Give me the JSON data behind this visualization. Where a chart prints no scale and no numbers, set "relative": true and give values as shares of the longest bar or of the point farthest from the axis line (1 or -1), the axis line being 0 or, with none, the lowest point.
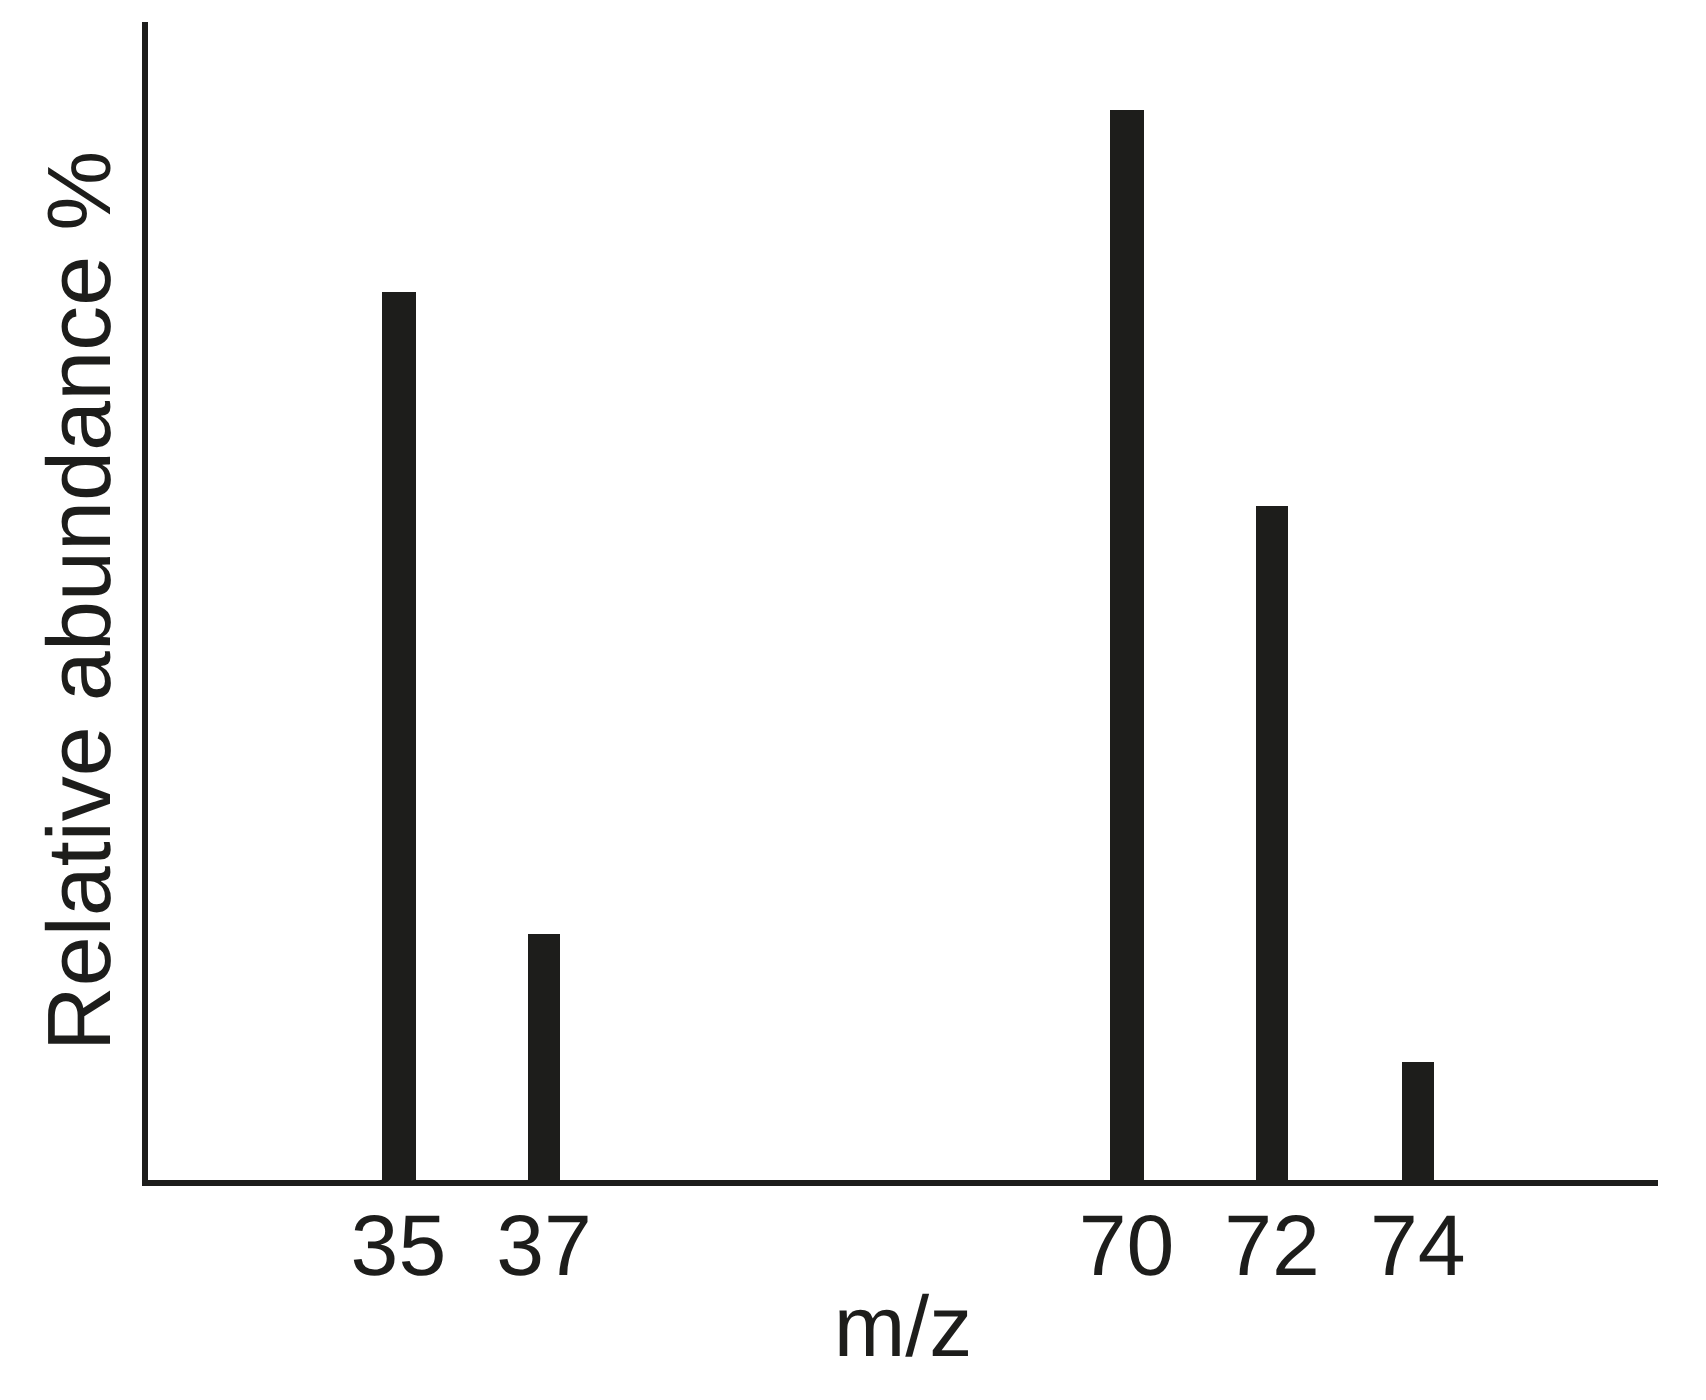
{
  "chart_data": {
    "type": "bar",
    "relative": true,
    "xlabel": "m/z",
    "ylabel": "Relative abundance %",
    "categories": [
      "35",
      "37",
      null,
      null,
      null,
      "70",
      "72",
      "74"
    ],
    "values": [
      0.83,
      0.23,
      null,
      null,
      null,
      1,
      0.63,
      0.11
    ],
    "color": "#1d1d1b"
  }
}
